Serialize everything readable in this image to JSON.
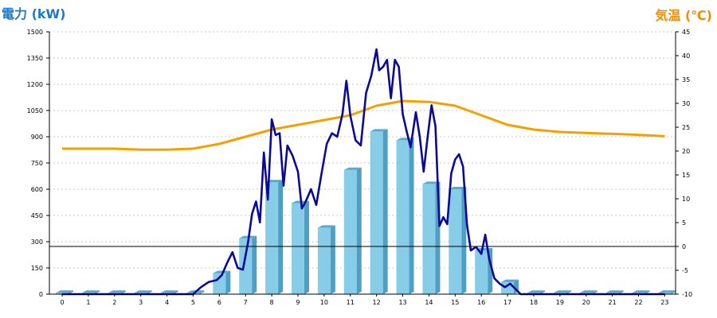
{
  "chart_data": {
    "type": "bar",
    "categories": [
      "0",
      "1",
      "2",
      "3",
      "4",
      "5",
      "6",
      "7",
      "8",
      "9",
      "10",
      "11",
      "12",
      "13",
      "14",
      "15",
      "16",
      "17",
      "18",
      "19",
      "20",
      "21",
      "22",
      "23"
    ],
    "y_left": {
      "label": "電力 (kW)",
      "range": [
        0,
        1500
      ],
      "ticks": [
        "0",
        "150",
        "300",
        "450",
        "600",
        "750",
        "900",
        "1050",
        "1200",
        "1350",
        "1500"
      ]
    },
    "y_right": {
      "label": "気温 (℃)",
      "range": [
        -10,
        45
      ],
      "ticks": [
        "-10",
        "-5",
        "0",
        "5",
        "10",
        "15",
        "20",
        "25",
        "30",
        "35",
        "40",
        "45"
      ]
    },
    "grid": true,
    "colors": {
      "bar_front": "#87cde8",
      "bar_side": "#4f9fc4",
      "bar_top": "#5aa7cc",
      "power_line": "#0a0a96",
      "temp_line": "#f5a000",
      "left_label": "#1e78c8",
      "right_label": "#f08c00"
    },
    "series": [
      {
        "kind": "bar",
        "axis": "left",
        "values": [
          8,
          8,
          8,
          8,
          8,
          8,
          120,
          320,
          640,
          520,
          380,
          710,
          930,
          880,
          630,
          600,
          250,
          70,
          8,
          8,
          8,
          8,
          8,
          8
        ]
      },
      {
        "kind": "line",
        "axis": "left",
        "x": [
          0,
          1,
          2,
          3,
          4,
          5,
          5.3,
          5.6,
          5.9,
          6.1,
          6.3,
          6.5,
          6.7,
          6.9,
          7.1,
          7.25,
          7.4,
          7.55,
          7.7,
          7.85,
          8,
          8.15,
          8.3,
          8.45,
          8.6,
          8.8,
          9,
          9.15,
          9.3,
          9.5,
          9.7,
          9.9,
          10.1,
          10.3,
          10.5,
          10.7,
          10.85,
          11,
          11.2,
          11.4,
          11.6,
          11.8,
          12,
          12.1,
          12.25,
          12.4,
          12.55,
          12.7,
          12.85,
          13,
          13.15,
          13.3,
          13.5,
          13.65,
          13.8,
          13.95,
          14.1,
          14.25,
          14.4,
          14.55,
          14.7,
          14.85,
          15,
          15.15,
          15.3,
          15.45,
          15.6,
          15.8,
          16,
          16.15,
          16.3,
          16.5,
          16.7,
          16.9,
          17.1,
          17.3,
          17.5,
          17.7,
          18,
          19,
          20,
          21,
          22,
          23
        ],
        "values": [
          0,
          0,
          0,
          0,
          0,
          0,
          40,
          70,
          80,
          110,
          180,
          240,
          150,
          140,
          300,
          460,
          530,
          410,
          810,
          540,
          1000,
          910,
          920,
          620,
          850,
          790,
          700,
          490,
          530,
          600,
          510,
          690,
          860,
          920,
          900,
          1030,
          1220,
          1020,
          880,
          850,
          1150,
          1250,
          1400,
          1280,
          1300,
          1340,
          1120,
          1340,
          1300,
          1030,
          930,
          840,
          1040,
          900,
          700,
          900,
          1080,
          960,
          390,
          440,
          400,
          690,
          770,
          800,
          730,
          400,
          250,
          270,
          230,
          340,
          200,
          90,
          60,
          40,
          60,
          30,
          0,
          0,
          0,
          0,
          0,
          0,
          0,
          0
        ]
      },
      {
        "kind": "line",
        "axis": "right",
        "x": [
          0,
          1,
          2,
          3,
          4,
          5,
          6,
          7,
          8,
          9,
          10,
          11,
          12,
          13,
          14,
          15,
          16,
          17,
          18,
          19,
          20,
          21,
          22,
          23
        ],
        "values": [
          20.5,
          20.5,
          20.5,
          20.3,
          20.3,
          20.5,
          21.5,
          23,
          24.5,
          25.5,
          26.5,
          27.5,
          29.5,
          30.5,
          30.3,
          29.5,
          27.5,
          25.5,
          24.5,
          24,
          23.8,
          23.6,
          23.4,
          23.1
        ]
      }
    ]
  }
}
